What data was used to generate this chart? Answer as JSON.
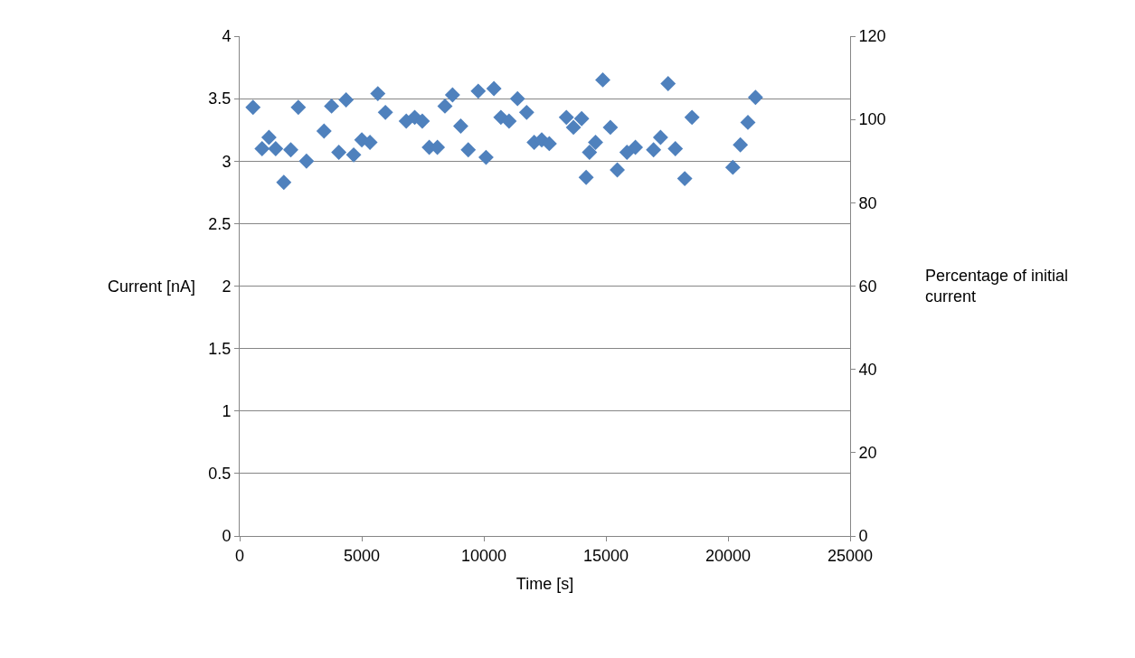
{
  "chart_data": {
    "type": "scatter",
    "xlabel": "Time [s]",
    "ylabel": "Current [nA]",
    "y2label": "Percentage of initial current",
    "x": [
      546,
      917,
      1200,
      1474,
      1808,
      2093,
      2402,
      2737,
      3455,
      3764,
      4061,
      4358,
      4669,
      5003,
      5337,
      5658,
      5969,
      6823,
      7169,
      7479,
      7764,
      8098,
      8407,
      8717,
      9053,
      9361,
      9770,
      10090,
      10413,
      10698,
      11033,
      11379,
      11753,
      12061,
      12370,
      12680,
      13380,
      13670,
      14005,
      14190,
      14327,
      14574,
      14871,
      15182,
      15465,
      15862,
      16207,
      16950,
      17236,
      17545,
      17842,
      18227,
      18525,
      20197,
      20505,
      20814,
      21125
    ],
    "series": [
      {
        "color": "#4f81bd",
        "values": [
          3.43,
          3.1,
          3.19,
          3.1,
          2.83,
          3.09,
          3.43,
          3.0,
          3.24,
          3.44,
          3.07,
          3.49,
          3.05,
          3.17,
          3.15,
          3.54,
          3.39,
          3.32,
          3.35,
          3.32,
          3.11,
          3.11,
          3.44,
          3.53,
          3.28,
          3.09,
          3.56,
          3.03,
          3.58,
          3.35,
          3.32,
          3.5,
          3.39,
          3.15,
          3.17,
          3.14,
          3.35,
          3.27,
          3.34,
          2.87,
          3.07,
          3.15,
          3.65,
          3.27,
          2.93,
          3.07,
          3.11,
          3.09,
          3.19,
          3.62,
          3.1,
          2.86,
          3.35,
          2.95,
          3.13,
          3.31,
          3.51
        ]
      }
    ],
    "xlim": [
      0,
      25000
    ],
    "xticks": [
      0,
      5000,
      10000,
      15000,
      20000,
      25000
    ],
    "ylim": [
      0,
      4
    ],
    "yticks": [
      0,
      0.5,
      1,
      1.5,
      2,
      2.5,
      3,
      3.5,
      4
    ],
    "y2lim": [
      0,
      120
    ],
    "y2ticks": [
      0,
      20,
      40,
      60,
      80,
      100,
      120
    ],
    "grid": "y",
    "marker": "diamond"
  }
}
